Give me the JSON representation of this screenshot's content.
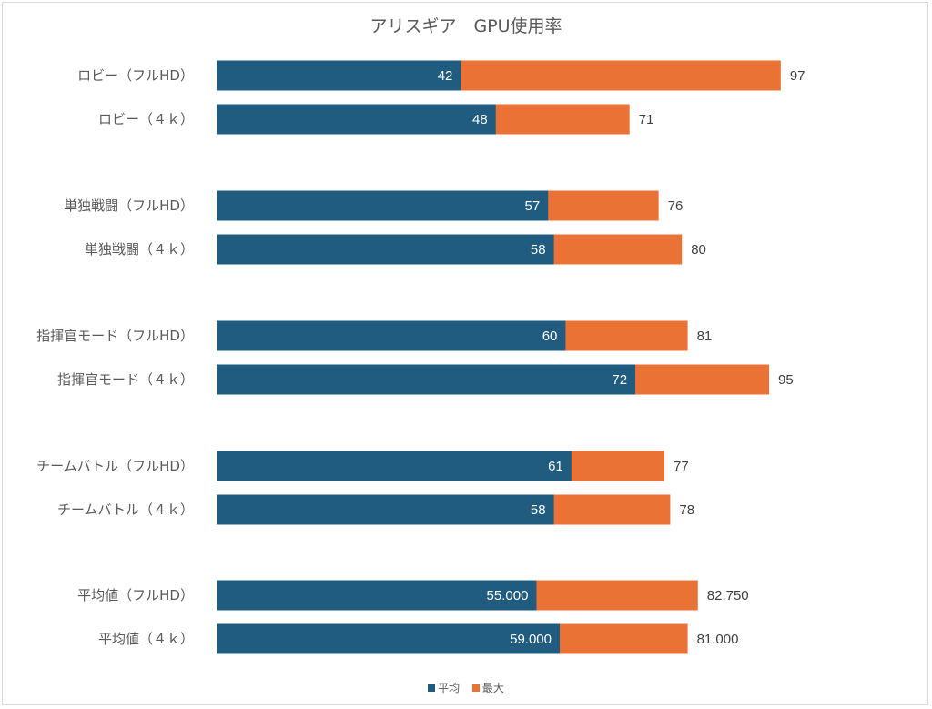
{
  "chart_data": {
    "type": "bar",
    "orientation": "horizontal",
    "overlap": true,
    "title": "アリスギア　GPU使用率",
    "xlabel": "",
    "ylabel": "",
    "xlim": [
      0,
      100
    ],
    "grid": false,
    "legend_position": "bottom",
    "categories": [
      "ロビー（フルHD）",
      "ロビー（４ｋ）",
      "単独戦闘（フルHD）",
      "単独戦闘（４ｋ）",
      "指揮官モード（フルHD）",
      "指揮官モード（４ｋ）",
      "チームバトル（フルHD）",
      "チームバトル（４ｋ）",
      "平均値（フルHD）",
      "平均値（４ｋ）"
    ],
    "series": [
      {
        "name": "平均",
        "color": "#1f5c80",
        "values": [
          42,
          48,
          57,
          58,
          60,
          72,
          61,
          58,
          55.0,
          59.0
        ],
        "labels": [
          "42",
          "48",
          "57",
          "58",
          "60",
          "72",
          "61",
          "58",
          "55.000",
          "59.000"
        ]
      },
      {
        "name": "最大",
        "color": "#ea7235",
        "values": [
          97,
          71,
          76,
          80,
          81,
          95,
          77,
          78,
          82.75,
          81.0
        ],
        "labels": [
          "97",
          "71",
          "76",
          "80",
          "81",
          "95",
          "77",
          "78",
          "82.750",
          "81.000"
        ]
      }
    ]
  }
}
